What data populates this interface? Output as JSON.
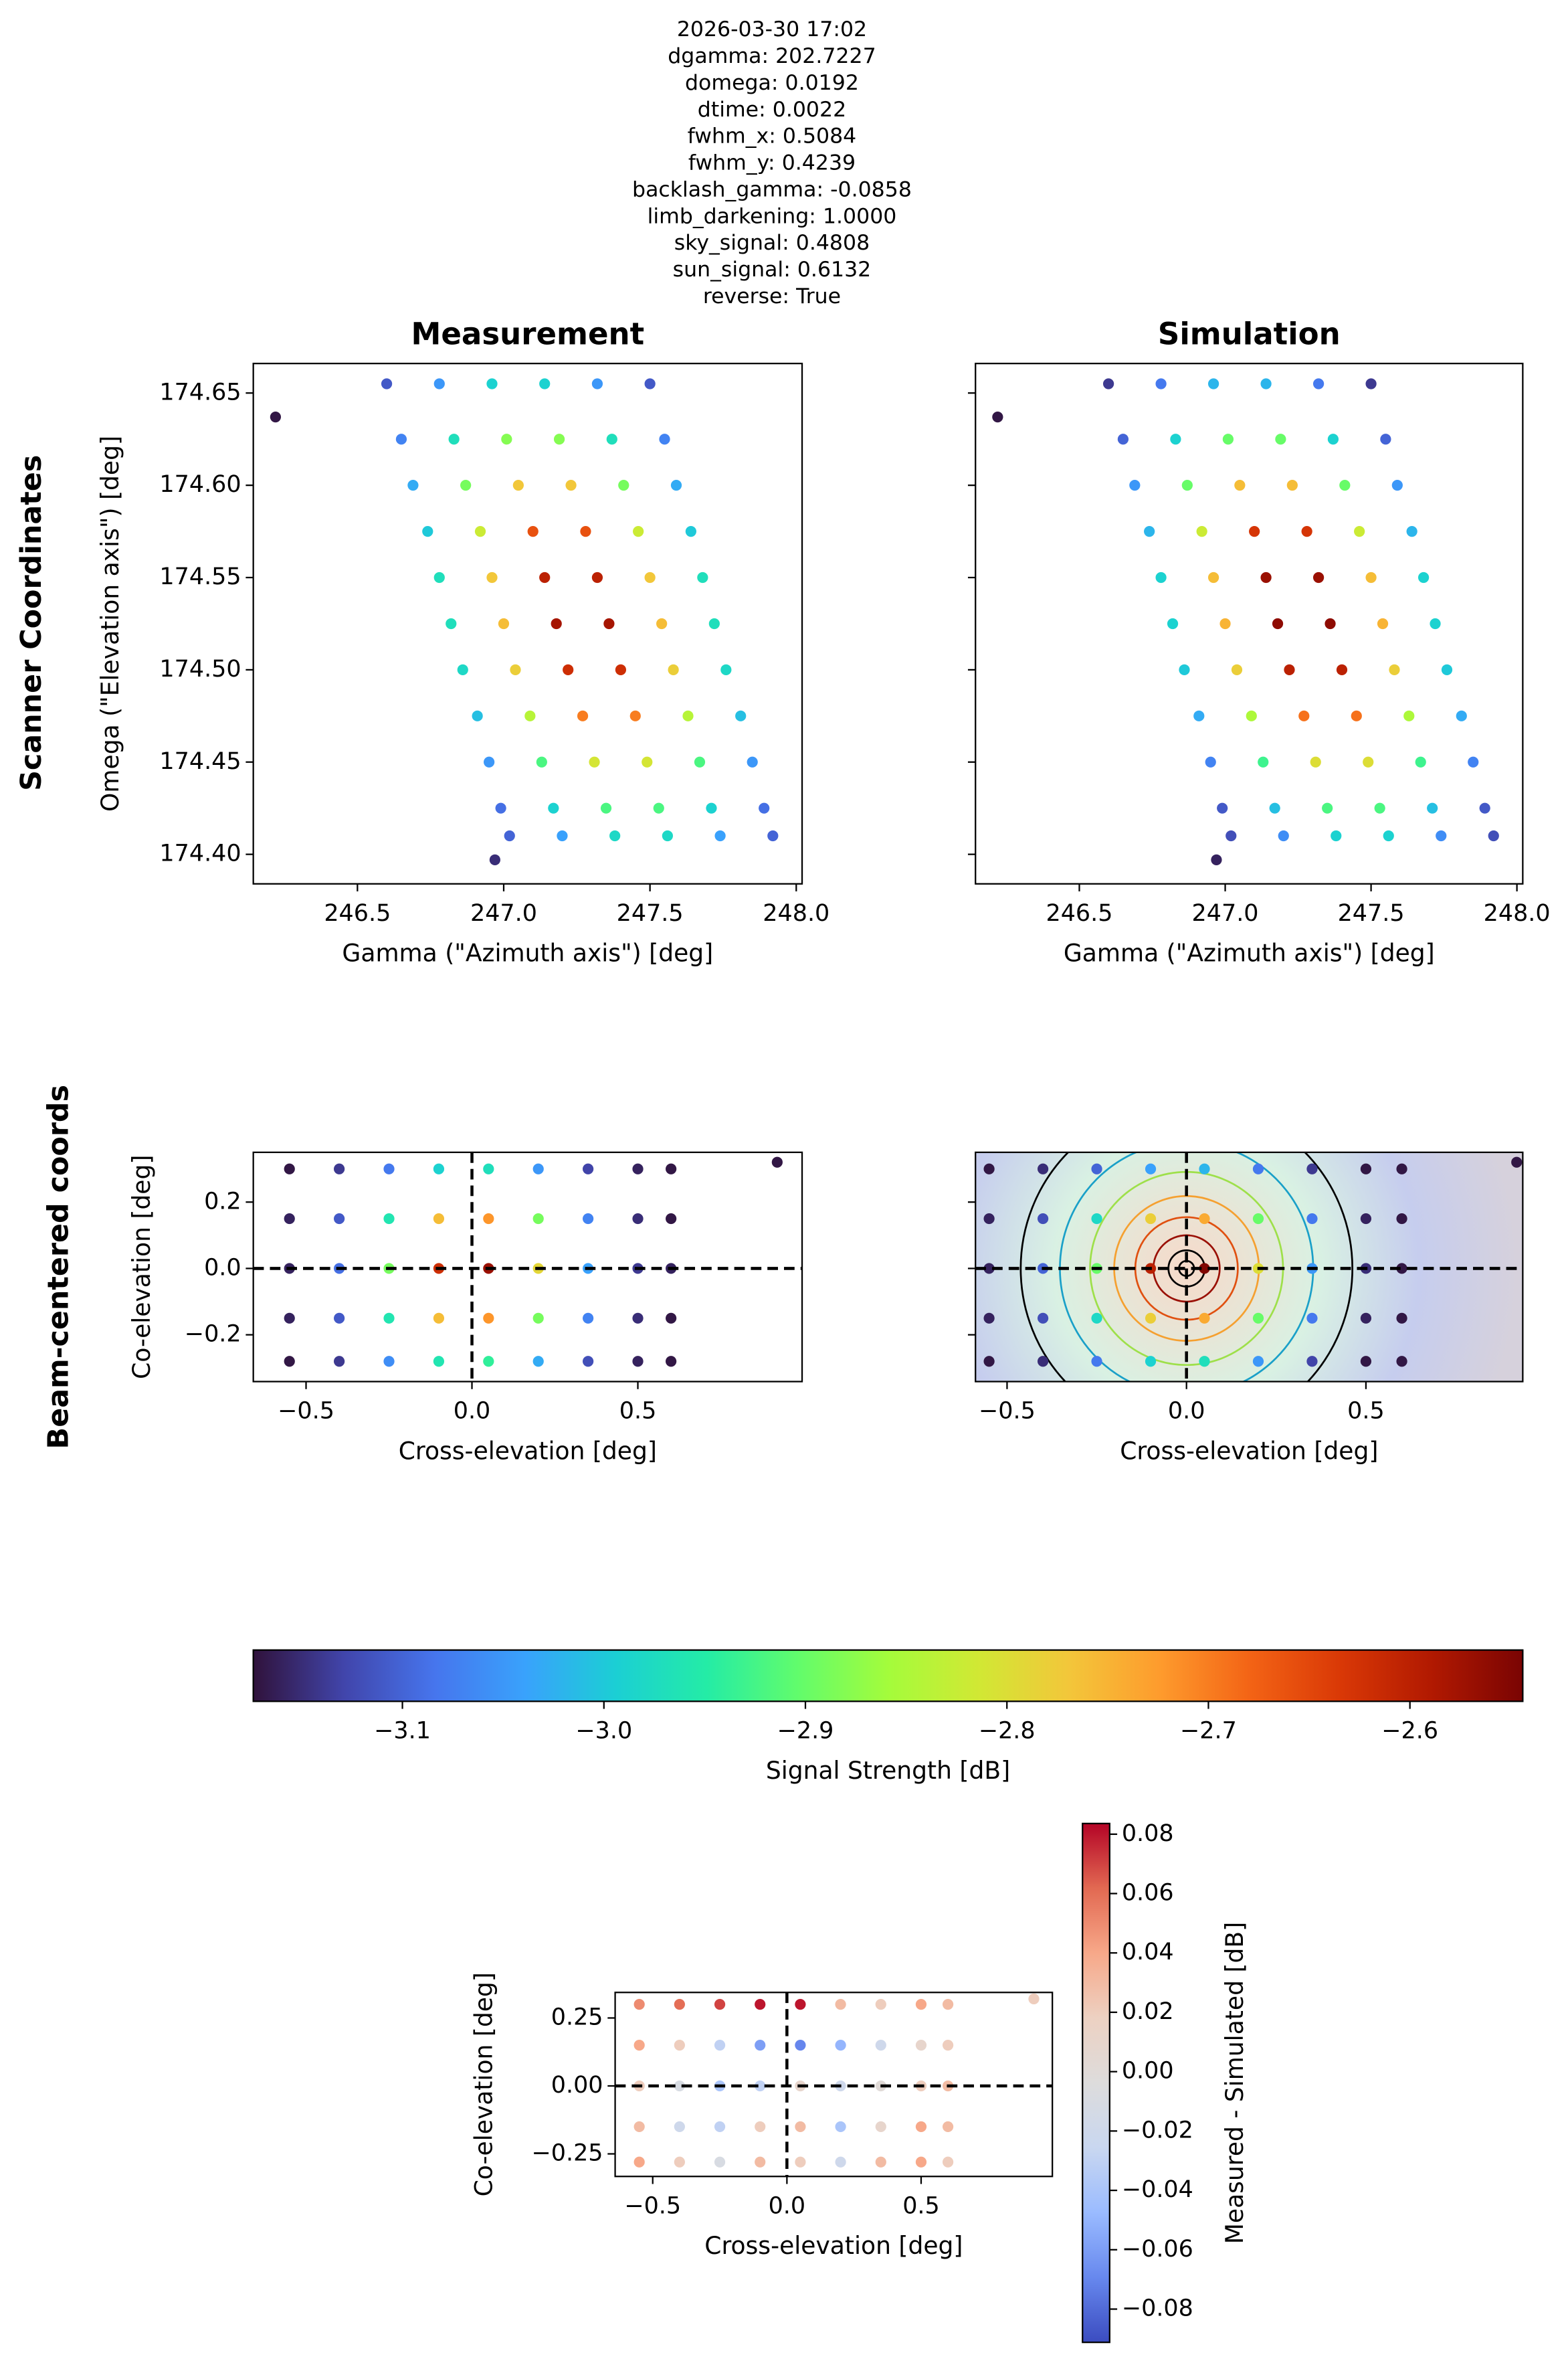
{
  "title_lines": [
    "2026-03-30 17:02",
    "dgamma: 202.7227",
    "domega: 0.0192",
    "dtime: 0.0022",
    "fwhm_x: 0.5084",
    "fwhm_y: 0.4239",
    "backlash_gamma: -0.0858",
    "limb_darkening: 1.0000",
    "sky_signal: 0.4808",
    "sun_signal: 0.6132",
    "reverse: True"
  ],
  "row_labels": [
    "Scanner Coordinates",
    "Beam-centered coords"
  ],
  "chart_data": [
    {
      "type": "scatter",
      "title": "Measurement",
      "xlabel": "Gamma (\"Azimuth axis\") [deg]",
      "ylabel": "Omega (\"Elevation axis\") [deg]",
      "xlim": [
        246.144,
        248.02
      ],
      "ylim": [
        174.384,
        174.666
      ],
      "xticks": [
        246.5,
        {
          "value": 247,
          "label": "247.0"
        },
        247.5,
        {
          "value": 248,
          "label": "248.0"
        }
      ],
      "yticks": [
        {
          "value": 174.4,
          "label": "174.40"
        },
        174.45,
        {
          "value": 174.5,
          "label": "174.50"
        },
        174.55,
        {
          "value": 174.6,
          "label": "174.60"
        },
        174.65
      ],
      "clim": [
        -3.174,
        -2.544
      ],
      "colormap": [
        "#30123b",
        "#4145ab",
        "#4675ed",
        "#39a2fc",
        "#1bcfd4",
        "#24eca6",
        "#61fc6c",
        "#a4fc3b",
        "#d1e834",
        "#f3c63a",
        "#fe9b2d",
        "#f36315",
        "#d93806",
        "#b11901",
        "#7a0403"
      ],
      "x": [
        246.6,
        246.78,
        246.96,
        247.14,
        247.32,
        247.5,
        246.65,
        246.83,
        247.01,
        247.19,
        247.37,
        247.55,
        246.69,
        246.87,
        247.05,
        247.23,
        247.41,
        247.59,
        246.74,
        246.92,
        247.1,
        247.28,
        247.46,
        247.64,
        246.78,
        246.96,
        247.14,
        247.32,
        247.5,
        247.68,
        246.82,
        247,
        247.18,
        247.36,
        247.54,
        247.72,
        246.86,
        247.04,
        247.22,
        247.4,
        247.58,
        247.76,
        246.91,
        247.09,
        247.27,
        247.45,
        247.63,
        247.81,
        246.95,
        247.13,
        247.31,
        247.49,
        247.67,
        247.85,
        246.99,
        247.17,
        247.35,
        247.53,
        247.71,
        247.89,
        247.02,
        247.2,
        247.38,
        247.56,
        247.74,
        247.92,
        246.22,
        246.97
      ],
      "y": [
        174.655,
        174.655,
        174.655,
        174.655,
        174.655,
        174.655,
        174.625,
        174.625,
        174.625,
        174.625,
        174.625,
        174.625,
        174.6,
        174.6,
        174.6,
        174.6,
        174.6,
        174.6,
        174.575,
        174.575,
        174.575,
        174.575,
        174.575,
        174.575,
        174.55,
        174.55,
        174.55,
        174.55,
        174.55,
        174.55,
        174.525,
        174.525,
        174.525,
        174.525,
        174.525,
        174.525,
        174.5,
        174.5,
        174.5,
        174.5,
        174.5,
        174.5,
        174.475,
        174.475,
        174.475,
        174.475,
        174.475,
        174.475,
        174.45,
        174.45,
        174.45,
        174.45,
        174.45,
        174.45,
        174.425,
        174.425,
        174.425,
        174.425,
        174.425,
        174.425,
        174.41,
        174.41,
        174.41,
        174.41,
        174.41,
        174.41,
        174.637,
        174.397
      ],
      "values": [
        -3.11,
        -3.05,
        -2.99,
        -2.99,
        -3.05,
        -3.11,
        -3.07,
        -2.97,
        -2.88,
        -2.88,
        -2.97,
        -3.07,
        -3.03,
        -2.89,
        -2.77,
        -2.77,
        -2.89,
        -3.03,
        -3,
        -2.82,
        -2.66,
        -2.66,
        -2.82,
        -3,
        -2.97,
        -2.77,
        -2.6,
        -2.6,
        -2.77,
        -2.97,
        -2.97,
        -2.76,
        -2.58,
        -2.58,
        -2.76,
        -2.97,
        -2.98,
        -2.78,
        -2.62,
        -2.62,
        -2.78,
        -2.98,
        -3.01,
        -2.84,
        -2.7,
        -2.7,
        -2.84,
        -3.01,
        -3.05,
        -2.92,
        -2.81,
        -2.81,
        -2.92,
        -3.05,
        -3.09,
        -2.99,
        -2.92,
        -2.92,
        -2.99,
        -3.09,
        -3.1,
        -3.04,
        -2.98,
        -2.98,
        -3.04,
        -3.1,
        -3.17,
        -3.15
      ]
    },
    {
      "type": "scatter",
      "title": "Simulation",
      "xlabel": "Gamma (\"Azimuth axis\") [deg]",
      "xlim": [
        246.144,
        248.02
      ],
      "ylim": [
        174.384,
        174.666
      ],
      "xticks": [
        246.5,
        {
          "value": 247,
          "label": "247.0"
        },
        247.5,
        {
          "value": 248,
          "label": "248.0"
        }
      ],
      "yticks": [
        174.4,
        174.45,
        174.5,
        174.55,
        174.6,
        174.65
      ],
      "clim": [
        -3.174,
        -2.544
      ],
      "colormap": [
        "#30123b",
        "#4145ab",
        "#4675ed",
        "#39a2fc",
        "#1bcfd4",
        "#24eca6",
        "#61fc6c",
        "#a4fc3b",
        "#d1e834",
        "#f3c63a",
        "#fe9b2d",
        "#f36315",
        "#d93806",
        "#b11901",
        "#7a0403"
      ],
      "x": [
        246.6,
        246.78,
        246.96,
        247.14,
        247.32,
        247.5,
        246.65,
        246.83,
        247.01,
        247.19,
        247.37,
        247.55,
        246.69,
        246.87,
        247.05,
        247.23,
        247.41,
        247.59,
        246.74,
        246.92,
        247.1,
        247.28,
        247.46,
        247.64,
        246.78,
        246.96,
        247.14,
        247.32,
        247.5,
        247.68,
        246.82,
        247,
        247.18,
        247.36,
        247.54,
        247.72,
        246.86,
        247.04,
        247.22,
        247.4,
        247.58,
        247.76,
        246.91,
        247.09,
        247.27,
        247.45,
        247.63,
        247.81,
        246.95,
        247.13,
        247.31,
        247.49,
        247.67,
        247.85,
        246.99,
        247.17,
        247.35,
        247.53,
        247.71,
        247.89,
        247.02,
        247.2,
        247.38,
        247.56,
        247.74,
        247.92,
        246.22,
        246.97
      ],
      "y": [
        174.655,
        174.655,
        174.655,
        174.655,
        174.655,
        174.655,
        174.625,
        174.625,
        174.625,
        174.625,
        174.625,
        174.625,
        174.6,
        174.6,
        174.6,
        174.6,
        174.6,
        174.6,
        174.575,
        174.575,
        174.575,
        174.575,
        174.575,
        174.575,
        174.55,
        174.55,
        174.55,
        174.55,
        174.55,
        174.55,
        174.525,
        174.525,
        174.525,
        174.525,
        174.525,
        174.525,
        174.5,
        174.5,
        174.5,
        174.5,
        174.5,
        174.5,
        174.475,
        174.475,
        174.475,
        174.475,
        174.475,
        174.475,
        174.45,
        174.45,
        174.45,
        174.45,
        174.45,
        174.45,
        174.425,
        174.425,
        174.425,
        174.425,
        174.425,
        174.425,
        174.41,
        174.41,
        174.41,
        174.41,
        174.41,
        174.41,
        174.637,
        174.397
      ],
      "values": [
        -3.14,
        -3.08,
        -3.02,
        -3.02,
        -3.08,
        -3.14,
        -3.1,
        -2.99,
        -2.9,
        -2.9,
        -2.99,
        -3.1,
        -3.05,
        -2.9,
        -2.76,
        -2.76,
        -2.9,
        -3.05,
        -3.02,
        -2.82,
        -2.63,
        -2.63,
        -2.82,
        -3.02,
        -2.99,
        -2.76,
        -2.57,
        -2.57,
        -2.76,
        -2.99,
        -2.99,
        -2.75,
        -2.56,
        -2.56,
        -2.75,
        -2.99,
        -3,
        -2.78,
        -2.6,
        -2.6,
        -2.78,
        -3,
        -3.03,
        -2.85,
        -2.69,
        -2.69,
        -2.85,
        -3.03,
        -3.07,
        -2.93,
        -2.8,
        -2.8,
        -2.93,
        -3.07,
        -3.11,
        -3.01,
        -2.92,
        -2.92,
        -3.01,
        -3.11,
        -3.12,
        -3.06,
        -2.99,
        -2.99,
        -3.06,
        -3.12,
        -3.17,
        -3.16
      ]
    },
    {
      "type": "scatter",
      "xlabel": "Cross-elevation [deg]",
      "ylabel": "Co-elevation [deg]",
      "crosshair": true,
      "xlim": [
        -0.659,
        0.995
      ],
      "ylim": [
        -0.341,
        0.35
      ],
      "xticks": [
        {
          "value": -0.5,
          "label": "−0.5"
        },
        {
          "value": 0,
          "label": "0.0"
        },
        0.5
      ],
      "yticks": [
        {
          "value": -0.2,
          "label": "−0.2"
        },
        {
          "value": 0,
          "label": "0.0"
        },
        0.2
      ],
      "clim": [
        -3.174,
        -2.544
      ],
      "colormap": [
        "#30123b",
        "#4145ab",
        "#4675ed",
        "#39a2fc",
        "#1bcfd4",
        "#24eca6",
        "#61fc6c",
        "#a4fc3b",
        "#d1e834",
        "#f3c63a",
        "#fe9b2d",
        "#f36315",
        "#d93806",
        "#b11901",
        "#7a0403"
      ],
      "x": [
        -0.55,
        -0.4,
        -0.25,
        -0.1,
        0.05,
        0.2,
        0.35,
        0.5,
        0.6,
        -0.55,
        -0.4,
        -0.25,
        -0.1,
        0.05,
        0.2,
        0.35,
        0.5,
        0.6,
        -0.55,
        -0.4,
        -0.25,
        -0.1,
        0.05,
        0.2,
        0.35,
        0.5,
        0.6,
        -0.55,
        -0.4,
        -0.25,
        -0.1,
        0.05,
        0.2,
        0.35,
        0.5,
        0.6,
        -0.55,
        -0.4,
        -0.25,
        -0.1,
        0.05,
        0.2,
        0.35,
        0.5,
        0.6,
        0.92
      ],
      "y": [
        0.3,
        0.3,
        0.3,
        0.3,
        0.3,
        0.3,
        0.3,
        0.3,
        0.3,
        0.15,
        0.15,
        0.15,
        0.15,
        0.15,
        0.15,
        0.15,
        0.15,
        0.15,
        0,
        0,
        0,
        0,
        0,
        0,
        0,
        0,
        0,
        -0.15,
        -0.15,
        -0.15,
        -0.15,
        -0.15,
        -0.15,
        -0.15,
        -0.15,
        -0.15,
        -0.28,
        -0.28,
        -0.28,
        -0.28,
        -0.28,
        -0.28,
        -0.28,
        -0.28,
        -0.28,
        0.32
      ],
      "values": [
        -3.17,
        -3.14,
        -3.08,
        -2.99,
        -2.97,
        -3.05,
        -3.13,
        -3.16,
        -3.17,
        -3.16,
        -3.11,
        -2.96,
        -2.76,
        -2.72,
        -2.89,
        -3.07,
        -3.15,
        -3.17,
        -3.16,
        -3.09,
        -2.89,
        -2.62,
        -2.57,
        -2.79,
        -3.04,
        -3.14,
        -3.16,
        -3.16,
        -3.11,
        -2.96,
        -2.76,
        -2.72,
        -2.89,
        -3.07,
        -3.15,
        -3.17,
        -3.17,
        -3.14,
        -3.06,
        -2.96,
        -2.94,
        -3.03,
        -3.12,
        -3.16,
        -3.17,
        -3.17
      ]
    },
    {
      "type": "scatter",
      "xlabel": "Cross-elevation [deg]",
      "crosshair": true,
      "xlim": [
        -0.588,
        0.937
      ],
      "ylim": [
        -0.341,
        0.35
      ],
      "xticks": [
        {
          "value": -0.5,
          "label": "−0.5"
        },
        {
          "value": 0,
          "label": "0.0"
        },
        0.5
      ],
      "yticks": [
        -0.2,
        0,
        0.2
      ],
      "clim": [
        -3.174,
        -2.544
      ],
      "colormap": [
        "#30123b",
        "#4145ab",
        "#4675ed",
        "#39a2fc",
        "#1bcfd4",
        "#24eca6",
        "#61fc6c",
        "#a4fc3b",
        "#d1e834",
        "#f3c63a",
        "#fe9b2d",
        "#f36315",
        "#d93806",
        "#b11901",
        "#7a0403"
      ],
      "x": [
        -0.55,
        -0.4,
        -0.25,
        -0.1,
        0.05,
        0.2,
        0.35,
        0.5,
        0.6,
        -0.55,
        -0.4,
        -0.25,
        -0.1,
        0.05,
        0.2,
        0.35,
        0.5,
        0.6,
        -0.55,
        -0.4,
        -0.25,
        -0.1,
        0.05,
        0.2,
        0.35,
        0.5,
        0.6,
        -0.55,
        -0.4,
        -0.25,
        -0.1,
        0.05,
        0.2,
        0.35,
        0.5,
        0.6,
        -0.55,
        -0.4,
        -0.25,
        -0.1,
        0.05,
        0.2,
        0.35,
        0.5,
        0.6,
        0.92
      ],
      "y": [
        0.3,
        0.3,
        0.3,
        0.3,
        0.3,
        0.3,
        0.3,
        0.3,
        0.3,
        0.15,
        0.15,
        0.15,
        0.15,
        0.15,
        0.15,
        0.15,
        0.15,
        0.15,
        0,
        0,
        0,
        0,
        0,
        0,
        0,
        0,
        0,
        -0.15,
        -0.15,
        -0.15,
        -0.15,
        -0.15,
        -0.15,
        -0.15,
        -0.15,
        -0.15,
        -0.28,
        -0.28,
        -0.28,
        -0.28,
        -0.28,
        -0.28,
        -0.28,
        -0.28,
        -0.28,
        0.32
      ],
      "values": [
        -3.17,
        -3.15,
        -3.1,
        -3.04,
        -3.02,
        -3.08,
        -3.14,
        -3.17,
        -3.17,
        -3.16,
        -3.12,
        -2.98,
        -2.78,
        -2.74,
        -2.9,
        -3.08,
        -3.16,
        -3.17,
        -3.16,
        -3.1,
        -2.9,
        -2.6,
        -2.55,
        -2.8,
        -3.05,
        -3.15,
        -3.17,
        -3.16,
        -3.12,
        -2.98,
        -2.78,
        -2.74,
        -2.9,
        -3.08,
        -3.16,
        -3.17,
        -3.17,
        -3.15,
        -3.08,
        -2.99,
        -2.97,
        -3.05,
        -3.13,
        -3.17,
        -3.17,
        -3.17
      ]
    },
    {
      "type": "colorbar",
      "orientation": "horizontal",
      "label": "Signal Strength [dB]",
      "lim": [
        -3.174,
        -2.544
      ],
      "ticks": [
        {
          "value": -3.1,
          "label": "−3.1"
        },
        {
          "value": -3,
          "label": "−3.0"
        },
        {
          "value": -2.9,
          "label": "−2.9"
        },
        {
          "value": -2.8,
          "label": "−2.8"
        },
        {
          "value": -2.7,
          "label": "−2.7"
        },
        {
          "value": -2.6,
          "label": "−2.6"
        }
      ],
      "colormap": [
        "#30123b",
        "#4145ab",
        "#4675ed",
        "#39a2fc",
        "#1bcfd4",
        "#24eca6",
        "#61fc6c",
        "#a4fc3b",
        "#d1e834",
        "#f3c63a",
        "#fe9b2d",
        "#f36315",
        "#d93806",
        "#b11901",
        "#7a0403"
      ]
    },
    {
      "type": "scatter",
      "xlabel": "Cross-elevation [deg]",
      "ylabel": "Co-elevation [deg]",
      "crosshair": true,
      "xlim": [
        -0.64,
        0.989
      ],
      "ylim": [
        -0.333,
        0.344
      ],
      "xticks": [
        {
          "value": -0.5,
          "label": "−0.5"
        },
        {
          "value": 0,
          "label": "0.0"
        },
        0.5
      ],
      "yticks": [
        {
          "value": -0.25,
          "label": "−0.25"
        },
        {
          "value": 0,
          "label": "0.00"
        },
        0.25
      ],
      "clim": [
        -0.0912,
        0.0836
      ],
      "colormap": [
        "#3b4cc0",
        "#6788ee",
        "#9abbff",
        "#c9d7f0",
        "#dddcdc",
        "#edd1c2",
        "#f7a889",
        "#e26952",
        "#b40426"
      ],
      "x": [
        -0.55,
        -0.4,
        -0.25,
        -0.1,
        0.05,
        0.2,
        0.35,
        0.5,
        0.6,
        -0.55,
        -0.4,
        -0.25,
        -0.1,
        0.05,
        0.2,
        0.35,
        0.5,
        0.6,
        -0.55,
        -0.4,
        -0.25,
        -0.1,
        0.05,
        0.2,
        0.35,
        0.5,
        0.6,
        -0.55,
        -0.4,
        -0.25,
        -0.1,
        0.05,
        0.2,
        0.35,
        0.5,
        0.6,
        -0.55,
        -0.4,
        -0.25,
        -0.1,
        0.05,
        0.2,
        0.35,
        0.5,
        0.6,
        0.92
      ],
      "y": [
        0.3,
        0.3,
        0.3,
        0.3,
        0.3,
        0.3,
        0.3,
        0.3,
        0.3,
        0.15,
        0.15,
        0.15,
        0.15,
        0.15,
        0.15,
        0.15,
        0.15,
        0.15,
        0,
        0,
        0,
        0,
        0,
        0,
        0,
        0,
        0,
        -0.15,
        -0.15,
        -0.15,
        -0.15,
        -0.15,
        -0.15,
        -0.15,
        -0.15,
        -0.15,
        -0.28,
        -0.28,
        -0.28,
        -0.28,
        -0.28,
        -0.28,
        -0.28,
        -0.28,
        -0.28,
        0.32
      ],
      "values": [
        0.05,
        0.06,
        0.07,
        0.08,
        0.08,
        0.03,
        0.02,
        0.04,
        0.03,
        0.04,
        0.02,
        -0.03,
        -0.06,
        -0.07,
        -0.05,
        -0.02,
        0.01,
        0.02,
        0.02,
        -0.01,
        -0.04,
        -0.03,
        0.01,
        -0.02,
        0,
        0.02,
        0.03,
        0.03,
        -0.02,
        -0.03,
        0.02,
        0.03,
        -0.04,
        0.01,
        0.04,
        0.03,
        0.04,
        0.02,
        -0.01,
        0.03,
        0.02,
        -0.02,
        0.03,
        0.04,
        0.02,
        0.02
      ]
    },
    {
      "type": "colorbar",
      "orientation": "vertical",
      "label": "Measured - Simulated [dB]",
      "lim": [
        -0.0912,
        0.0836
      ],
      "ticks": [
        {
          "value": -0.08,
          "label": "−0.08"
        },
        {
          "value": -0.06,
          "label": "−0.06"
        },
        {
          "value": -0.04,
          "label": "−0.04"
        },
        {
          "value": -0.02,
          "label": "−0.02"
        },
        {
          "value": 0,
          "label": "0.00"
        },
        0.02,
        0.04,
        0.06,
        0.08
      ],
      "colormap": [
        "#3b4cc0",
        "#6788ee",
        "#9abbff",
        "#c9d7f0",
        "#dddcdc",
        "#edd1c2",
        "#f7a889",
        "#e26952",
        "#b40426"
      ]
    }
  ]
}
